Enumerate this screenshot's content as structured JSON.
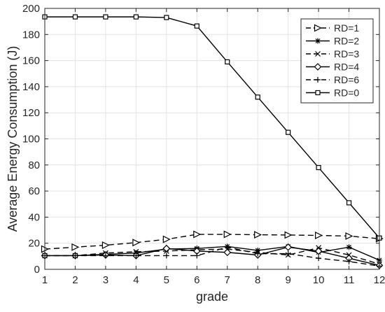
{
  "chart_data": {
    "type": "line",
    "title": "",
    "xlabel": "grade",
    "ylabel": "Average Energy Consumption (J)",
    "x": [
      1,
      2,
      3,
      4,
      5,
      6,
      7,
      8,
      9,
      10,
      11,
      12
    ],
    "xlim": [
      1,
      12
    ],
    "ylim": [
      0,
      200
    ],
    "xticks": [
      "1",
      "2",
      "3",
      "4",
      "5",
      "6",
      "7",
      "8",
      "9",
      "10",
      "11",
      "12"
    ],
    "yticks": [
      "0",
      "20",
      "40",
      "60",
      "80",
      "100",
      "120",
      "140",
      "160",
      "180",
      "200"
    ],
    "grid": true,
    "legend_position": "top-right",
    "series": [
      {
        "name": "RD=1",
        "marker": "triangle-right",
        "dash": "dashed",
        "color": "#000000",
        "values": [
          15.5,
          17,
          18.5,
          20.5,
          23,
          26.8,
          26.8,
          26.5,
          26.3,
          26,
          25.5,
          23.5
        ]
      },
      {
        "name": "RD=2",
        "marker": "asterisk",
        "dash": "solid",
        "color": "#000000",
        "values": [
          10.5,
          10.5,
          11.5,
          12.5,
          15.5,
          16,
          17.5,
          14.5,
          17.5,
          13,
          17,
          7
        ]
      },
      {
        "name": "RD=3",
        "marker": "x",
        "dash": "dashed",
        "color": "#000000",
        "values": [
          10.5,
          10.5,
          12.5,
          13.5,
          14,
          15,
          15.5,
          13,
          11,
          16.5,
          11,
          4
        ]
      },
      {
        "name": "RD=4",
        "marker": "diamond",
        "dash": "solid",
        "color": "#000000",
        "values": [
          10.5,
          10.5,
          11,
          10.5,
          16,
          14,
          13,
          11,
          17,
          14,
          8.5,
          3
        ]
      },
      {
        "name": "RD=6",
        "marker": "plus",
        "dash": "dashed",
        "color": "#000000",
        "values": [
          10.5,
          10.5,
          10.5,
          10.5,
          10.5,
          10.5,
          17,
          12,
          12,
          8.5,
          6,
          2.5
        ]
      },
      {
        "name": "RD=0",
        "marker": "square",
        "dash": "solid",
        "color": "#000000",
        "values": [
          193.5,
          193.5,
          193.5,
          193.5,
          193,
          186.5,
          159,
          132,
          105,
          78,
          51,
          24
        ]
      }
    ]
  }
}
